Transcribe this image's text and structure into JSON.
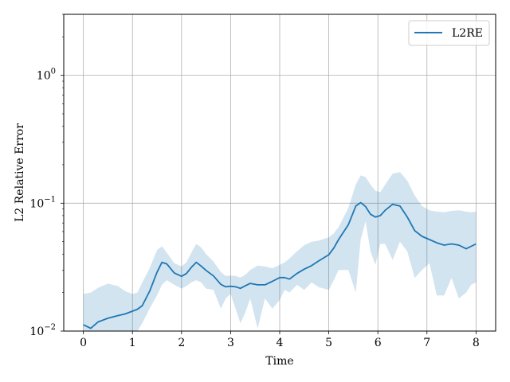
{
  "chart_data": {
    "type": "line",
    "xlabel": "Time",
    "ylabel": "L2 Relative Error",
    "xlim": [
      -0.4,
      8.4
    ],
    "ylim": [
      0.01,
      3.0
    ],
    "yscale": "log",
    "grid": true,
    "legend_position": "top-right",
    "x_ticks": [
      0,
      1,
      2,
      3,
      4,
      5,
      6,
      7,
      8
    ],
    "x_tick_labels": [
      "0",
      "1",
      "2",
      "3",
      "4",
      "5",
      "6",
      "7",
      "8"
    ],
    "y_ticks": [
      0.01,
      0.1,
      1
    ],
    "y_tick_labels": [
      {
        "base": "10",
        "exp": "−2"
      },
      {
        "base": "10",
        "exp": "−1"
      },
      {
        "base": "10",
        "exp": "0"
      }
    ],
    "series": [
      {
        "name": "L2RE",
        "color": "#1f77b4",
        "band_color": "#1f77b4",
        "x": [
          0,
          0.15,
          0.3,
          0.5,
          0.7,
          0.85,
          1.0,
          1.1,
          1.2,
          1.35,
          1.5,
          1.6,
          1.7,
          1.85,
          2.0,
          2.1,
          2.2,
          2.3,
          2.4,
          2.5,
          2.65,
          2.8,
          2.9,
          3.0,
          3.1,
          3.2,
          3.3,
          3.4,
          3.55,
          3.7,
          3.85,
          4.0,
          4.1,
          4.2,
          4.35,
          4.5,
          4.65,
          4.8,
          5.0,
          5.1,
          5.2,
          5.4,
          5.55,
          5.65,
          5.75,
          5.85,
          5.95,
          6.05,
          6.15,
          6.3,
          6.45,
          6.6,
          6.75,
          6.9,
          7.05,
          7.2,
          7.35,
          7.5,
          7.65,
          7.8,
          7.9,
          8.0
        ],
        "y": [
          0.0112,
          0.0105,
          0.0118,
          0.0126,
          0.0132,
          0.0136,
          0.0143,
          0.0148,
          0.0158,
          0.0205,
          0.0288,
          0.0345,
          0.0335,
          0.0285,
          0.0268,
          0.0282,
          0.0315,
          0.0345,
          0.0322,
          0.0298,
          0.027,
          0.0232,
          0.0222,
          0.0224,
          0.0222,
          0.0216,
          0.0226,
          0.0236,
          0.023,
          0.023,
          0.0245,
          0.0262,
          0.0262,
          0.0255,
          0.0282,
          0.0305,
          0.0325,
          0.0355,
          0.0395,
          0.0445,
          0.052,
          0.068,
          0.095,
          0.101,
          0.094,
          0.082,
          0.078,
          0.08,
          0.088,
          0.098,
          0.095,
          0.078,
          0.061,
          0.055,
          0.052,
          0.049,
          0.047,
          0.048,
          0.047,
          0.044,
          0.046,
          0.048
        ],
        "upper": [
          0.0195,
          0.02,
          0.0218,
          0.0235,
          0.0225,
          0.0205,
          0.0195,
          0.02,
          0.024,
          0.031,
          0.043,
          0.046,
          0.041,
          0.034,
          0.032,
          0.0345,
          0.041,
          0.048,
          0.045,
          0.04,
          0.035,
          0.029,
          0.027,
          0.0272,
          0.027,
          0.0262,
          0.0275,
          0.03,
          0.0325,
          0.032,
          0.031,
          0.033,
          0.0345,
          0.037,
          0.042,
          0.047,
          0.05,
          0.051,
          0.054,
          0.058,
          0.065,
          0.092,
          0.14,
          0.165,
          0.16,
          0.14,
          0.125,
          0.122,
          0.14,
          0.17,
          0.175,
          0.15,
          0.115,
          0.095,
          0.088,
          0.086,
          0.085,
          0.087,
          0.088,
          0.086,
          0.085,
          0.086
        ],
        "lower": [
          0.0095,
          0.009,
          0.0088,
          0.009,
          0.0088,
          0.0092,
          0.0093,
          0.01,
          0.0115,
          0.015,
          0.019,
          0.023,
          0.025,
          0.023,
          0.0215,
          0.0225,
          0.024,
          0.025,
          0.024,
          0.0215,
          0.021,
          0.015,
          0.018,
          0.0195,
          0.015,
          0.0115,
          0.014,
          0.018,
          0.0105,
          0.018,
          0.015,
          0.0175,
          0.021,
          0.02,
          0.023,
          0.021,
          0.024,
          0.022,
          0.021,
          0.025,
          0.03,
          0.03,
          0.02,
          0.052,
          0.072,
          0.042,
          0.033,
          0.048,
          0.048,
          0.036,
          0.05,
          0.042,
          0.026,
          0.03,
          0.034,
          0.019,
          0.019,
          0.026,
          0.018,
          0.02,
          0.023,
          0.024
        ]
      }
    ]
  }
}
